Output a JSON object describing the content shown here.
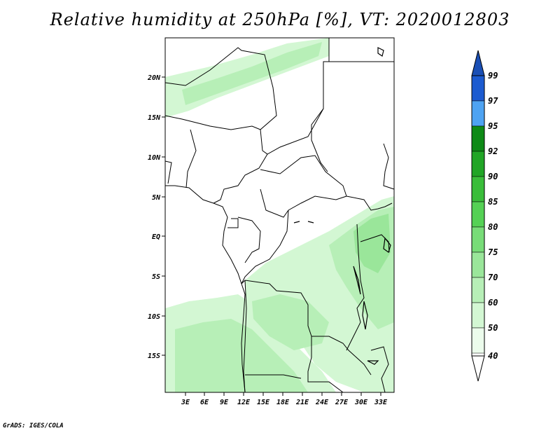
{
  "title": "Relative humidity at 250hPa [%], VT: 2020012803",
  "credit": "GrADS: IGES/COLA",
  "map": {
    "lat_labels": [
      "20N",
      "15N",
      "10N",
      "5N",
      "EQ",
      "5S",
      "10S",
      "15S"
    ],
    "lon_labels": [
      "3E",
      "6E",
      "9E",
      "12E",
      "15E",
      "18E",
      "21E",
      "24E",
      "27E",
      "30E",
      "33E"
    ]
  },
  "colorbar": {
    "levels": [
      "99",
      "97",
      "95",
      "92",
      "90",
      "85",
      "80",
      "75",
      "70",
      "60",
      "50",
      "40"
    ],
    "colors": [
      "#1c5bd0",
      "#2f7ae6",
      "#4ea3f2",
      "#0e8a16",
      "#21a526",
      "#3abd3a",
      "#55d155",
      "#78dc78",
      "#9ae69a",
      "#b7efb7",
      "#d3f7d3",
      "#ecfcec"
    ],
    "top_color": "#1a4fb5",
    "bottom_color": "#ffffff"
  },
  "colors": {
    "land_border": "#000000",
    "humidity_light": "#d3f7d3",
    "humidity_mid": "#b7efb7",
    "humidity_strong": "#9ae69a"
  }
}
